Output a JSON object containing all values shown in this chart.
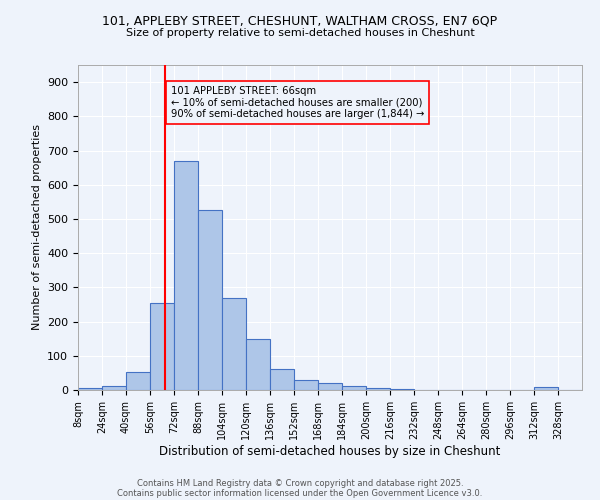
{
  "title_line1": "101, APPLEBY STREET, CHESHUNT, WALTHAM CROSS, EN7 6QP",
  "title_line2": "Size of property relative to semi-detached houses in Cheshunt",
  "xlabel": "Distribution of semi-detached houses by size in Cheshunt",
  "ylabel": "Number of semi-detached properties",
  "bin_labels": [
    "8sqm",
    "24sqm",
    "40sqm",
    "56sqm",
    "72sqm",
    "88sqm",
    "104sqm",
    "120sqm",
    "136sqm",
    "152sqm",
    "168sqm",
    "184sqm",
    "200sqm",
    "216sqm",
    "232sqm",
    "248sqm",
    "264sqm",
    "280sqm",
    "296sqm",
    "312sqm",
    "328sqm"
  ],
  "bar_values": [
    5,
    12,
    52,
    255,
    670,
    525,
    270,
    148,
    62,
    28,
    20,
    13,
    5,
    2,
    0,
    0,
    0,
    0,
    0,
    8,
    0
  ],
  "bin_edges": [
    8,
    24,
    40,
    56,
    72,
    88,
    104,
    120,
    136,
    152,
    168,
    184,
    200,
    216,
    232,
    248,
    264,
    280,
    296,
    312,
    328,
    344
  ],
  "bar_color": "#aec6e8",
  "bar_edge_color": "#4472c4",
  "red_line_x": 66,
  "ylim": [
    0,
    950
  ],
  "yticks": [
    0,
    100,
    200,
    300,
    400,
    500,
    600,
    700,
    800,
    900
  ],
  "annotation_title": "101 APPLEBY STREET: 66sqm",
  "annotation_line1": "← 10% of semi-detached houses are smaller (200)",
  "annotation_line2": "90% of semi-detached houses are larger (1,844) →",
  "bg_color": "#eef3fb",
  "grid_color": "#ffffff",
  "footer_line1": "Contains HM Land Registry data © Crown copyright and database right 2025.",
  "footer_line2": "Contains public sector information licensed under the Open Government Licence v3.0."
}
